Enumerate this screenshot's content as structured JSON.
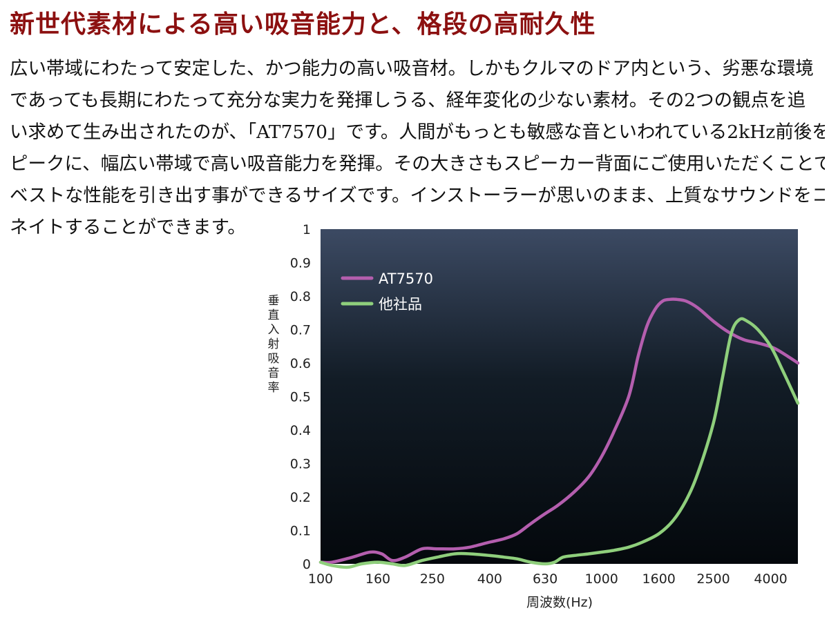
{
  "title": "新世代素材による高い吸音能力と、格段の高耐久性",
  "paragraph_lines": [
    "広い帯域にわたって安定した、かつ能力の高い吸音材。しかもクルマのドア内という、劣悪な環境",
    "であっても長期にわたって充分な実力を発揮しうる、経年変化の少ない素材。その2つの観点を追",
    "い求めて生み出されたのが、「AT7570」です。人間がもっとも敏感な音といわれている2kHz前後を",
    "ピークに、幅広い帯域で高い吸音能力を発揮。その大きさもスピーカー背面にご使用いただくことで、",
    "ベストな性能を引き出す事ができるサイズです。インストーラーが思いのまま、上質なサウンドをコーディ",
    "ネイトすることができます。"
  ],
  "chart_data": {
    "type": "line",
    "xlabel": "周波数(Hz)",
    "ylabel": "垂直入射吸音率",
    "xscale": "log",
    "xlim": [
      100,
      5000
    ],
    "ylim": [
      0,
      1
    ],
    "x_ticks": [
      100,
      160,
      250,
      400,
      630,
      1000,
      1600,
      2500,
      4000
    ],
    "x_tick_labels": [
      "100",
      "160",
      "250",
      "400",
      "630",
      "1000",
      "1600",
      "2500",
      "4000"
    ],
    "y_ticks": [
      0,
      0.1,
      0.2,
      0.3,
      0.4,
      0.5,
      0.6,
      0.7,
      0.8,
      0.9,
      1
    ],
    "y_tick_labels": [
      "0",
      "0.1",
      "0.2",
      "0.3",
      "0.4",
      "0.5",
      "0.6",
      "0.7",
      "0.8",
      "0.9",
      "1"
    ],
    "legend_position": "top-left",
    "background_colors": [
      "#3c4a63",
      "#121c26",
      "#04080c"
    ],
    "series": [
      {
        "name": "AT7570",
        "color": "#b45eae",
        "x": [
          100,
          110,
          130,
          150,
          165,
          180,
          200,
          230,
          260,
          300,
          340,
          400,
          450,
          500,
          560,
          630,
          700,
          800,
          900,
          1000,
          1100,
          1250,
          1350,
          1450,
          1550,
          1650,
          1750,
          1850,
          2000,
          2200,
          2500,
          2800,
          3200,
          3600,
          4100,
          4600,
          5000
        ],
        "y": [
          0.005,
          0.005,
          0.02,
          0.035,
          0.03,
          0.01,
          0.02,
          0.045,
          0.045,
          0.045,
          0.05,
          0.065,
          0.075,
          0.09,
          0.12,
          0.15,
          0.175,
          0.215,
          0.26,
          0.32,
          0.39,
          0.5,
          0.62,
          0.71,
          0.76,
          0.785,
          0.79,
          0.79,
          0.785,
          0.765,
          0.725,
          0.695,
          0.67,
          0.66,
          0.645,
          0.62,
          0.6
        ]
      },
      {
        "name": "他社品",
        "color": "#8fcf7c",
        "x": [
          100,
          110,
          125,
          140,
          160,
          180,
          200,
          230,
          260,
          300,
          340,
          400,
          450,
          500,
          560,
          630,
          680,
          730,
          800,
          900,
          1000,
          1100,
          1250,
          1400,
          1600,
          1800,
          2000,
          2200,
          2500,
          2700,
          2900,
          3100,
          3300,
          3600,
          4000,
          4400,
          5000
        ],
        "y": [
          0.005,
          -0.005,
          -0.01,
          0.0,
          0.005,
          0.0,
          -0.005,
          0.01,
          0.02,
          0.03,
          0.03,
          0.025,
          0.02,
          0.015,
          0.005,
          0.0,
          0.005,
          0.02,
          0.025,
          0.03,
          0.035,
          0.04,
          0.05,
          0.065,
          0.09,
          0.13,
          0.19,
          0.27,
          0.42,
          0.56,
          0.69,
          0.73,
          0.725,
          0.7,
          0.65,
          0.58,
          0.48
        ]
      }
    ]
  }
}
